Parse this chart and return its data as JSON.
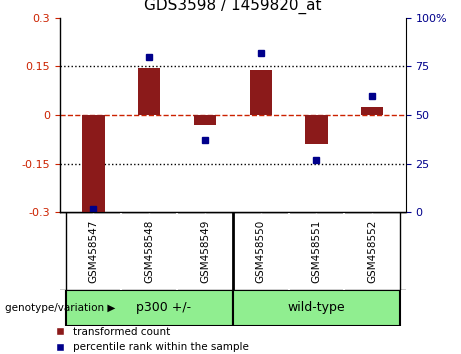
{
  "title": "GDS3598 / 1459820_at",
  "samples": [
    "GSM458547",
    "GSM458548",
    "GSM458549",
    "GSM458550",
    "GSM458551",
    "GSM458552"
  ],
  "red_values": [
    -0.305,
    0.145,
    -0.03,
    0.138,
    -0.09,
    0.025
  ],
  "blue_values_pct": [
    2,
    80,
    37,
    82,
    27,
    60
  ],
  "ylim_left": [
    -0.3,
    0.3
  ],
  "ylim_right": [
    0,
    100
  ],
  "yticks_left": [
    -0.3,
    -0.15,
    0,
    0.15,
    0.3
  ],
  "yticks_right": [
    0,
    25,
    50,
    75,
    100
  ],
  "bar_color": "#8B1A1A",
  "dot_color": "#00008B",
  "zero_line_color": "#CC2200",
  "dotted_line_color": "#000000",
  "bg_color": "#FFFFFF",
  "tick_area_color": "#C8C8C8",
  "group_area_color": "#90EE90",
  "legend_red_label": "transformed count",
  "legend_blue_label": "percentile rank within the sample",
  "xlabel_area": "genotype/variation",
  "group1_label": "p300 +/-",
  "group2_label": "wild-type",
  "group_split": 3
}
